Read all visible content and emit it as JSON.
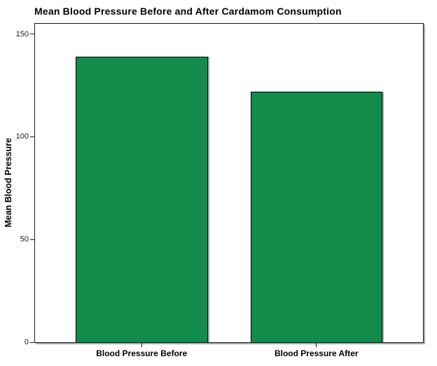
{
  "page": {
    "background_color": "#ffffff"
  },
  "chart_data": {
    "type": "bar",
    "title": "Mean Blood Pressure Before and After Cardamom Consumption",
    "categories": [
      "Blood Pressure Before",
      "Blood Pressure After"
    ],
    "values": [
      139,
      122
    ],
    "xlabel": "",
    "ylabel": "Mean Blood Pressure",
    "ylim": [
      0,
      155
    ],
    "yticks": [
      0,
      50,
      100,
      150
    ],
    "grid": false,
    "legend": false,
    "bar_color": "#118C4A",
    "bar_border_color": "#000000",
    "bar_shadow_color": "#a6a6a6",
    "frame_border_color": "#1a1a1a",
    "frame_shadow_color": "#aaaaaa",
    "tick_color": "#1a1a1a"
  }
}
